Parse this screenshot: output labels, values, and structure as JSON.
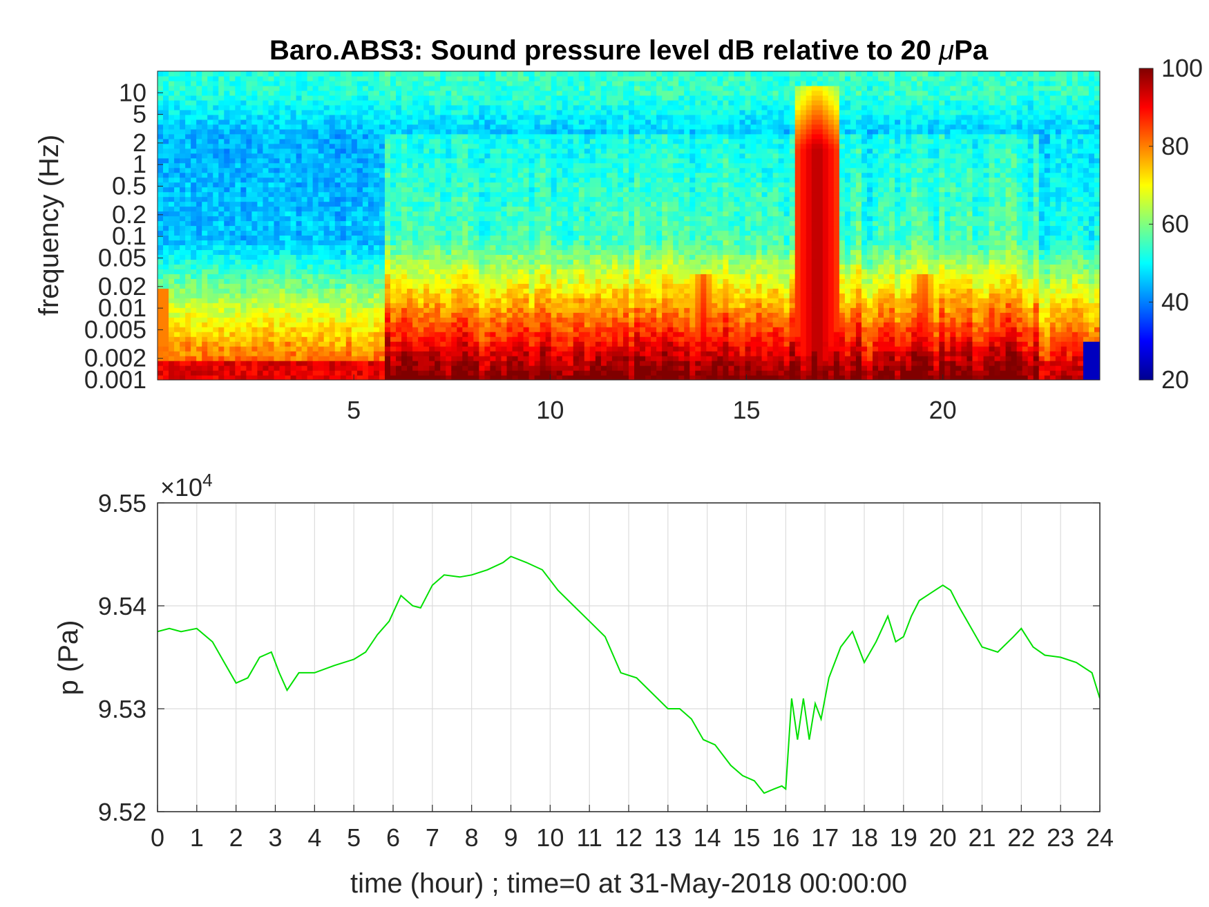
{
  "chart_data": [
    {
      "type": "heatmap",
      "title_prefix": "Baro.ABS3: Sound pressure level dB relative to 20 ",
      "title_mu": "μ",
      "title_suffix": "Pa",
      "ylabel": "frequency (Hz)",
      "xlabel": "",
      "y_scale": "log",
      "xlim": [
        0,
        24
      ],
      "ylim": [
        0.001,
        20
      ],
      "x_ticks": [
        "5",
        "10",
        "15",
        "20"
      ],
      "x_tick_values": [
        5,
        10,
        15,
        20
      ],
      "y_ticks": [
        "10",
        "5",
        "2",
        "1",
        "0.5",
        "0.2",
        "0.1",
        "0.05",
        "0.02",
        "0.01",
        "0.005",
        "0.002",
        "0.001"
      ],
      "y_tick_values": [
        10,
        5,
        2,
        1,
        0.5,
        0.2,
        0.1,
        0.05,
        0.02,
        0.01,
        0.005,
        0.002,
        0.001
      ],
      "colormap": "jet",
      "colorbar": {
        "range": [
          20,
          100
        ],
        "ticks": [
          "100",
          "80",
          "60",
          "40",
          "20"
        ],
        "tick_values": [
          100,
          80,
          60,
          40,
          20
        ]
      },
      "highlights_hours": [
        {
          "hour": 16.8,
          "note": "broadband high level event"
        },
        {
          "hour": 13.9,
          "level": "high at low frequency"
        },
        {
          "hour": 19.5,
          "level": "high at low frequency"
        }
      ]
    },
    {
      "type": "line",
      "title": "",
      "xlabel": "time (hour) ; time=0 at 31-May-2018 00:00:00",
      "ylabel": "p (Pa)",
      "y_exponent_label": "×10",
      "y_exponent_power": "4",
      "xlim": [
        0,
        24
      ],
      "ylim": [
        95200,
        95500
      ],
      "grid": true,
      "x_ticks": [
        "0",
        "1",
        "2",
        "3",
        "4",
        "5",
        "6",
        "7",
        "8",
        "9",
        "10",
        "11",
        "12",
        "13",
        "14",
        "15",
        "16",
        "17",
        "18",
        "19",
        "20",
        "21",
        "22",
        "23",
        "24"
      ],
      "y_ticks": [
        "9.55",
        "9.54",
        "9.53",
        "9.52"
      ],
      "y_tick_values": [
        95500,
        95400,
        95300,
        95200
      ],
      "line_color": "#00e000",
      "series": [
        {
          "x": [
            0,
            0.3,
            0.6,
            1.0,
            1.4,
            1.7,
            2.0,
            2.3,
            2.6,
            2.9,
            3.1,
            3.3,
            3.6,
            4.0,
            4.5,
            5.0,
            5.3,
            5.6,
            5.9,
            6.2,
            6.5,
            6.7,
            7.0,
            7.3,
            7.7,
            8.0,
            8.4,
            8.8,
            9.0,
            9.4,
            9.8,
            10.2,
            10.6,
            11.0,
            11.4,
            11.8,
            12.2,
            12.6,
            13.0,
            13.3,
            13.6,
            13.9,
            14.2,
            14.6,
            14.9,
            15.2,
            15.45,
            15.7,
            15.9,
            16.0,
            16.15,
            16.3,
            16.45,
            16.6,
            16.75,
            16.9,
            17.1,
            17.4,
            17.7,
            18.0,
            18.3,
            18.6,
            18.8,
            19.0,
            19.2,
            19.4,
            19.6,
            19.8,
            20.0,
            20.2,
            20.4,
            20.7,
            21.0,
            21.4,
            21.8,
            22.0,
            22.3,
            22.6,
            23.0,
            23.4,
            23.8,
            24.0
          ],
          "y": [
            95375,
            95378,
            95375,
            95378,
            95365,
            95345,
            95325,
            95330,
            95350,
            95355,
            95335,
            95318,
            95335,
            95335,
            95342,
            95348,
            95355,
            95372,
            95385,
            95410,
            95400,
            95398,
            95420,
            95430,
            95428,
            95430,
            95435,
            95442,
            95448,
            95442,
            95435,
            95415,
            95400,
            95385,
            95370,
            95335,
            95330,
            95315,
            95300,
            95300,
            95290,
            95270,
            95265,
            95245,
            95235,
            95230,
            95218,
            95222,
            95225,
            95222,
            95310,
            95270,
            95310,
            95270,
            95305,
            95290,
            95330,
            95360,
            95375,
            95345,
            95365,
            95390,
            95365,
            95370,
            95390,
            95405,
            95410,
            95415,
            95420,
            95415,
            95400,
            95380,
            95360,
            95355,
            95370,
            95378,
            95360,
            95352,
            95350,
            95345,
            95335,
            95310
          ]
        }
      ]
    }
  ]
}
